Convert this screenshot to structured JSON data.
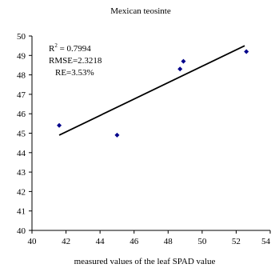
{
  "chart_data": {
    "type": "scatter",
    "title": "Mexican teosinte",
    "xlabel": "measured values of the leaf SPAD value",
    "ylabel": "",
    "xlim": [
      40,
      54
    ],
    "ylim": [
      40,
      50
    ],
    "x_ticks": [
      "40",
      "42",
      "44",
      "46",
      "48",
      "50",
      "52",
      "54"
    ],
    "y_ticks": [
      "40",
      "41",
      "42",
      "43",
      "44",
      "45",
      "46",
      "47",
      "48",
      "49",
      "50"
    ],
    "grid": false,
    "legend": "none",
    "series": [
      {
        "marker_color": "#00008b",
        "points": [
          {
            "x": 41.6,
            "y": 45.4
          },
          {
            "x": 45.0,
            "y": 44.9
          },
          {
            "x": 48.7,
            "y": 48.3
          },
          {
            "x": 48.9,
            "y": 48.7
          },
          {
            "x": 52.6,
            "y": 49.2
          }
        ]
      }
    ],
    "trendline": {
      "color": "#000000",
      "start": {
        "x": 41.6,
        "y": 44.9
      },
      "end": {
        "x": 52.5,
        "y": 49.5
      }
    },
    "annotations": {
      "r2_prefix": "R",
      "r2_sup": "2",
      "r2_value": " = 0.7994",
      "rmse": "RMSE=2.3218",
      "re": "RE=3.53%"
    }
  }
}
